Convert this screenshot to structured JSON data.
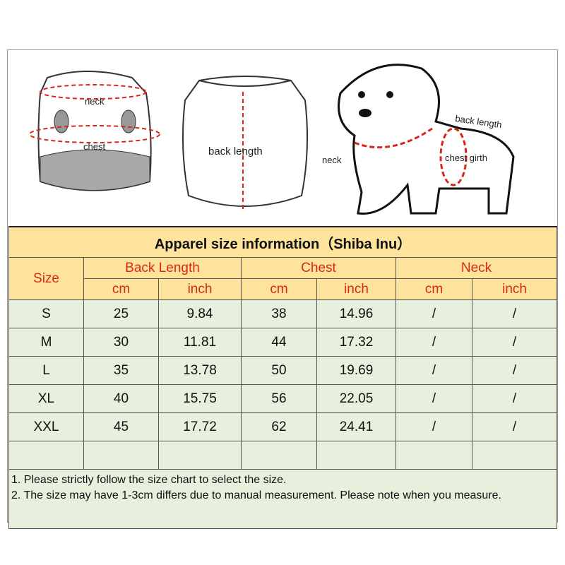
{
  "illustration": {
    "front_labels": {
      "neck": "neck",
      "chest": "chest"
    },
    "back_label": "back length",
    "dog_labels": {
      "back_length": "back length",
      "neck": "neck",
      "chest_girth": "chest girth"
    },
    "accent_color": "#d9271b"
  },
  "table": {
    "title": "Apparel  size  information（Shiba Inu）",
    "size_header": "Size",
    "groups": [
      "Back Length",
      "Chest",
      "Neck"
    ],
    "units": [
      "cm",
      "inch",
      "cm",
      "inch",
      "cm",
      "inch"
    ],
    "rows": [
      [
        "S",
        "25",
        "9.84",
        "38",
        "14.96",
        "/",
        "/"
      ],
      [
        "M",
        "30",
        "11.81",
        "44",
        "17.32",
        "/",
        "/"
      ],
      [
        "L",
        "35",
        "13.78",
        "50",
        "19.69",
        "/",
        "/"
      ],
      [
        "XL",
        "40",
        "15.75",
        "56",
        "22.05",
        "/",
        "/"
      ],
      [
        "XXL",
        "45",
        "17.72",
        "62",
        "24.41",
        "/",
        "/"
      ]
    ],
    "notes": [
      "1. Please strictly follow the size chart  to select the size.",
      "2. The size may have 1-3cm differs due to manual measurement. Please note when you measure."
    ]
  },
  "colors": {
    "header_bg": "#fde39c",
    "row_bg": "#e6f0dd",
    "header_text": "#d9271b"
  }
}
